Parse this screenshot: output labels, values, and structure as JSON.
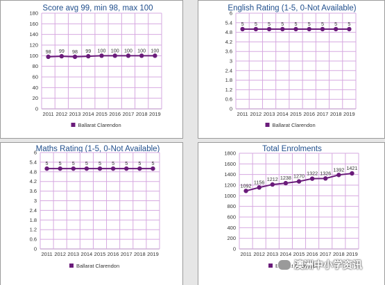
{
  "chart_data": [
    {
      "type": "line",
      "title": "Score avg 99, min 98, max 100",
      "categories": [
        "2011",
        "2012",
        "2013",
        "2014",
        "2015",
        "2016",
        "2017",
        "2018",
        "2019"
      ],
      "series": [
        {
          "name": "Ballarat Clarendon",
          "values": [
            98,
            99,
            98,
            99,
            100,
            100,
            100,
            100,
            100
          ]
        }
      ],
      "ylim": [
        0,
        180
      ],
      "yticks": [
        "0",
        "20",
        "40",
        "60",
        "80",
        "100",
        "120",
        "140",
        "160",
        "180"
      ],
      "grid": true,
      "legend": "bottom"
    },
    {
      "type": "line",
      "title": "English Rating (1-5, 0-Not Available)",
      "categories": [
        "2011",
        "2012",
        "2013",
        "2014",
        "2015",
        "2016",
        "2017",
        "2018",
        "2019"
      ],
      "series": [
        {
          "name": "Ballarat Clarendon",
          "values": [
            5,
            5,
            5,
            5,
            5,
            5,
            5,
            5,
            5
          ]
        }
      ],
      "ylim": [
        0,
        6
      ],
      "yticks": [
        "0",
        "0.6",
        "1.2",
        "1.8",
        "2.4",
        "3",
        "3.6",
        "4.2",
        "4.8",
        "5.4",
        "6"
      ],
      "grid": true,
      "legend": "bottom"
    },
    {
      "type": "line",
      "title": "Maths Rating (1-5, 0-Not Available)",
      "categories": [
        "2011",
        "2012",
        "2013",
        "2014",
        "2015",
        "2016",
        "2017",
        "2018",
        "2019"
      ],
      "series": [
        {
          "name": "Ballarat Clarendon",
          "values": [
            5,
            5,
            5,
            5,
            5,
            5,
            5,
            5,
            5
          ]
        }
      ],
      "ylim": [
        0,
        6
      ],
      "yticks": [
        "0",
        "0.6",
        "1.2",
        "1.8",
        "2.4",
        "3",
        "3.6",
        "4.2",
        "4.8",
        "5.4",
        "6"
      ],
      "grid": true,
      "legend": "bottom"
    },
    {
      "type": "line",
      "title": "Total Enrolments",
      "categories": [
        "2011",
        "2012",
        "2013",
        "2014",
        "2015",
        "2016",
        "2017",
        "2018",
        "2019"
      ],
      "series": [
        {
          "name": "Ballarat Clarendon",
          "values": [
            1092,
            1156,
            1212,
            1238,
            1270,
            1322,
            1326,
            1392,
            1421
          ]
        }
      ],
      "ylim": [
        0,
        1800
      ],
      "yticks": [
        "0",
        "200",
        "400",
        "600",
        "800",
        "1000",
        "1200",
        "1400",
        "1600",
        "1800"
      ],
      "grid": true,
      "legend": "bottom"
    }
  ],
  "colors": {
    "series": "#6a1b7a",
    "grid": "#d6a8e0",
    "axis": "#b68ac0",
    "title": "#1f4e8c",
    "text": "#333333"
  },
  "watermark": {
    "text": "澳洲中小学资讯",
    "icon": "wechat-icon"
  }
}
